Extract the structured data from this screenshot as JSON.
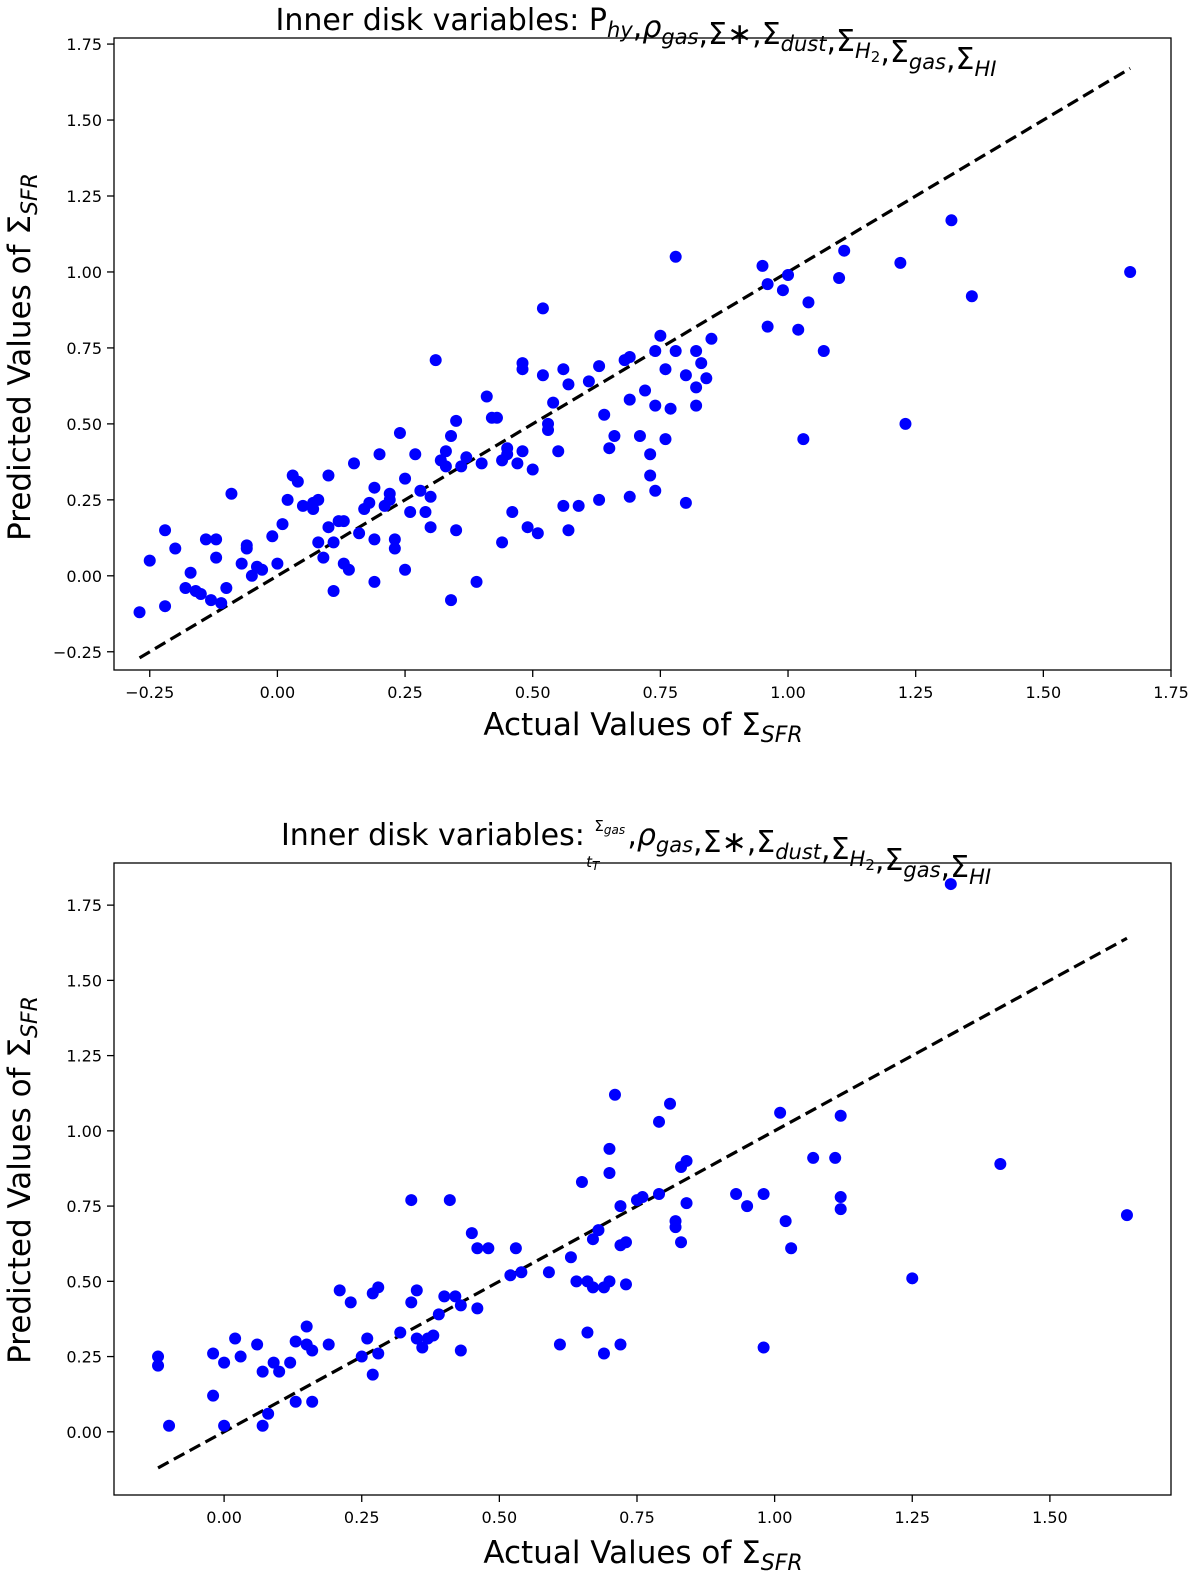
{
  "figure": {
    "charts": [
      {
        "title_main": "Inner disk variables: ",
        "title_terms": [
          {
            "base": "P",
            "sub": "hy"
          },
          {
            "base": "ρ",
            "sub": "gas"
          },
          {
            "base": "Σ∗",
            "sub": ""
          },
          {
            "base": "Σ",
            "sub": "dust"
          },
          {
            "base": "Σ",
            "sub": "H",
            "subsub": "2"
          },
          {
            "base": "Σ",
            "sub": "gas"
          },
          {
            "base": "Σ",
            "sub": "HI"
          }
        ]
      },
      {
        "title_main": "Inner disk variables: ",
        "title_fraction": {
          "num_base": "Σ",
          "num_sub": "gas",
          "den_base": "t",
          "den_sub": "T"
        },
        "title_terms": [
          {
            "base": "ρ",
            "sub": "gas"
          },
          {
            "base": "Σ∗",
            "sub": ""
          },
          {
            "base": "Σ",
            "sub": "dust"
          },
          {
            "base": "Σ",
            "sub": "H",
            "subsub": "2"
          },
          {
            "base": "Σ",
            "sub": "gas"
          },
          {
            "base": "Σ",
            "sub": "HI"
          }
        ]
      }
    ]
  },
  "chart_data": [
    {
      "type": "scatter",
      "title": "Inner disk variables: P_hy, ρ_gas, Σ∗, Σ_dust, Σ_H2, Σ_gas, Σ_HI",
      "xlabel": "Actual Values of Σ_SFR",
      "ylabel": "Predicted Values of Σ_SFR",
      "xlabel_base": "Actual Values of Σ",
      "ylabel_base": "Predicted Values of Σ",
      "label_sub": "SFR",
      "xlim": [
        -0.32,
        1.75
      ],
      "ylim": [
        -0.31,
        1.77
      ],
      "xticks": [
        -0.25,
        0,
        0.25,
        0.5,
        0.75,
        1,
        1.25,
        1.5,
        1.75
      ],
      "xtick_labels": [
        "−0.25",
        "0.00",
        "0.25",
        "0.50",
        "0.75",
        "1.00",
        "1.25",
        "1.50",
        "1.75"
      ],
      "yticks": [
        -0.25,
        0,
        0.25,
        0.5,
        0.75,
        1,
        1.25,
        1.5,
        1.75
      ],
      "ytick_labels": [
        "−0.25",
        "0.00",
        "0.25",
        "0.50",
        "0.75",
        "1.00",
        "1.25",
        "1.50",
        "1.75"
      ],
      "marker_color": "#0000ff",
      "reference_line": {
        "x": [
          -0.27,
          1.67
        ],
        "y": [
          -0.27,
          1.67
        ],
        "style": "dashed",
        "color": "#000000"
      },
      "points": [
        [
          -0.27,
          -0.12
        ],
        [
          -0.25,
          0.05
        ],
        [
          -0.22,
          -0.1
        ],
        [
          -0.22,
          0.15
        ],
        [
          -0.2,
          0.09
        ],
        [
          -0.18,
          -0.04
        ],
        [
          -0.17,
          0.01
        ],
        [
          -0.16,
          -0.05
        ],
        [
          -0.15,
          -0.06
        ],
        [
          -0.14,
          0.12
        ],
        [
          -0.13,
          -0.08
        ],
        [
          -0.12,
          0.12
        ],
        [
          -0.12,
          0.06
        ],
        [
          -0.11,
          -0.09
        ],
        [
          -0.1,
          -0.04
        ],
        [
          -0.09,
          0.27
        ],
        [
          -0.07,
          0.04
        ],
        [
          -0.06,
          0.09
        ],
        [
          -0.06,
          0.1
        ],
        [
          -0.05,
          0.0
        ],
        [
          -0.04,
          0.03
        ],
        [
          -0.03,
          0.02
        ],
        [
          -0.01,
          0.13
        ],
        [
          0.0,
          0.04
        ],
        [
          0.01,
          0.17
        ],
        [
          0.02,
          0.25
        ],
        [
          0.03,
          0.33
        ],
        [
          0.04,
          0.31
        ],
        [
          0.05,
          0.23
        ],
        [
          0.07,
          0.24
        ],
        [
          0.07,
          0.22
        ],
        [
          0.08,
          0.11
        ],
        [
          0.08,
          0.25
        ],
        [
          0.09,
          0.06
        ],
        [
          0.1,
          0.33
        ],
        [
          0.1,
          0.16
        ],
        [
          0.11,
          0.11
        ],
        [
          0.11,
          -0.05
        ],
        [
          0.12,
          0.18
        ],
        [
          0.13,
          0.04
        ],
        [
          0.13,
          0.18
        ],
        [
          0.14,
          0.02
        ],
        [
          0.15,
          0.37
        ],
        [
          0.16,
          0.14
        ],
        [
          0.17,
          0.22
        ],
        [
          0.18,
          0.24
        ],
        [
          0.19,
          0.12
        ],
        [
          0.19,
          -0.02
        ],
        [
          0.19,
          0.29
        ],
        [
          0.2,
          0.4
        ],
        [
          0.21,
          0.23
        ],
        [
          0.22,
          0.27
        ],
        [
          0.22,
          0.25
        ],
        [
          0.23,
          0.12
        ],
        [
          0.23,
          0.09
        ],
        [
          0.24,
          0.47
        ],
        [
          0.25,
          0.32
        ],
        [
          0.25,
          0.02
        ],
        [
          0.26,
          0.21
        ],
        [
          0.27,
          0.4
        ],
        [
          0.28,
          0.28
        ],
        [
          0.29,
          0.21
        ],
        [
          0.3,
          0.16
        ],
        [
          0.3,
          0.26
        ],
        [
          0.31,
          0.71
        ],
        [
          0.32,
          0.38
        ],
        [
          0.33,
          0.36
        ],
        [
          0.33,
          0.41
        ],
        [
          0.34,
          0.46
        ],
        [
          0.34,
          -0.08
        ],
        [
          0.35,
          0.15
        ],
        [
          0.35,
          0.51
        ],
        [
          0.36,
          0.36
        ],
        [
          0.37,
          0.39
        ],
        [
          0.39,
          -0.02
        ],
        [
          0.4,
          0.37
        ],
        [
          0.41,
          0.59
        ],
        [
          0.42,
          0.52
        ],
        [
          0.43,
          0.52
        ],
        [
          0.44,
          0.11
        ],
        [
          0.44,
          0.38
        ],
        [
          0.45,
          0.4
        ],
        [
          0.45,
          0.42
        ],
        [
          0.46,
          0.21
        ],
        [
          0.47,
          0.37
        ],
        [
          0.48,
          0.41
        ],
        [
          0.48,
          0.68
        ],
        [
          0.48,
          0.7
        ],
        [
          0.49,
          0.16
        ],
        [
          0.5,
          0.35
        ],
        [
          0.51,
          0.14
        ],
        [
          0.52,
          0.66
        ],
        [
          0.52,
          0.88
        ],
        [
          0.53,
          0.5
        ],
        [
          0.53,
          0.48
        ],
        [
          0.54,
          0.57
        ],
        [
          0.55,
          0.41
        ],
        [
          0.56,
          0.68
        ],
        [
          0.56,
          0.23
        ],
        [
          0.57,
          0.63
        ],
        [
          0.57,
          0.15
        ],
        [
          0.59,
          0.23
        ],
        [
          0.61,
          0.64
        ],
        [
          0.63,
          0.25
        ],
        [
          0.63,
          0.69
        ],
        [
          0.64,
          0.53
        ],
        [
          0.65,
          0.42
        ],
        [
          0.66,
          0.46
        ],
        [
          0.68,
          0.71
        ],
        [
          0.69,
          0.72
        ],
        [
          0.69,
          0.26
        ],
        [
          0.69,
          0.58
        ],
        [
          0.71,
          0.46
        ],
        [
          0.72,
          0.61
        ],
        [
          0.73,
          0.4
        ],
        [
          0.73,
          0.33
        ],
        [
          0.74,
          0.28
        ],
        [
          0.74,
          0.74
        ],
        [
          0.74,
          0.56
        ],
        [
          0.75,
          0.79
        ],
        [
          0.76,
          0.45
        ],
        [
          0.76,
          0.68
        ],
        [
          0.77,
          0.55
        ],
        [
          0.78,
          1.05
        ],
        [
          0.78,
          0.74
        ],
        [
          0.8,
          0.24
        ],
        [
          0.8,
          0.66
        ],
        [
          0.82,
          0.62
        ],
        [
          0.82,
          0.56
        ],
        [
          0.82,
          0.74
        ],
        [
          0.83,
          0.7
        ],
        [
          0.84,
          0.65
        ],
        [
          0.85,
          0.78
        ],
        [
          0.95,
          1.02
        ],
        [
          0.96,
          0.96
        ],
        [
          0.96,
          0.82
        ],
        [
          0.99,
          0.94
        ],
        [
          1.0,
          0.99
        ],
        [
          1.02,
          0.81
        ],
        [
          1.03,
          0.45
        ],
        [
          1.04,
          0.9
        ],
        [
          1.07,
          0.74
        ],
        [
          1.1,
          0.98
        ],
        [
          1.11,
          1.07
        ],
        [
          1.22,
          1.03
        ],
        [
          1.23,
          0.5
        ],
        [
          1.32,
          1.17
        ],
        [
          1.36,
          0.92
        ],
        [
          1.67,
          1.0
        ]
      ]
    },
    {
      "type": "scatter",
      "title": "Inner disk variables: Σ_gas/t_T, ρ_gas, Σ∗, Σ_dust, Σ_H2, Σ_gas, Σ_HI",
      "xlabel": "Actual Values of Σ_SFR",
      "ylabel": "Predicted Values of Σ_SFR",
      "xlabel_base": "Actual Values of Σ",
      "ylabel_base": "Predicted Values of Σ",
      "label_sub": "SFR",
      "xlim": [
        -0.2,
        1.72
      ],
      "ylim": [
        -0.21,
        1.89
      ],
      "xticks": [
        0,
        0.25,
        0.5,
        0.75,
        1,
        1.25,
        1.5
      ],
      "xtick_labels": [
        "0.00",
        "0.25",
        "0.50",
        "0.75",
        "1.00",
        "1.25",
        "1.50"
      ],
      "yticks": [
        0,
        0.25,
        0.5,
        0.75,
        1,
        1.25,
        1.5,
        1.75
      ],
      "ytick_labels": [
        "0.00",
        "0.25",
        "0.50",
        "0.75",
        "1.00",
        "1.25",
        "1.50",
        "1.75"
      ],
      "marker_color": "#0000ff",
      "reference_line": {
        "x": [
          -0.12,
          1.64
        ],
        "y": [
          -0.12,
          1.64
        ],
        "style": "dashed",
        "color": "#000000"
      },
      "points": [
        [
          -0.12,
          0.25
        ],
        [
          -0.12,
          0.22
        ],
        [
          -0.1,
          0.02
        ],
        [
          -0.02,
          0.26
        ],
        [
          -0.02,
          0.12
        ],
        [
          0.0,
          0.23
        ],
        [
          0.0,
          0.02
        ],
        [
          0.02,
          0.31
        ],
        [
          0.03,
          0.25
        ],
        [
          0.06,
          0.29
        ],
        [
          0.07,
          0.02
        ],
        [
          0.07,
          0.2
        ],
        [
          0.08,
          0.06
        ],
        [
          0.09,
          0.23
        ],
        [
          0.1,
          0.2
        ],
        [
          0.12,
          0.23
        ],
        [
          0.13,
          0.3
        ],
        [
          0.13,
          0.1
        ],
        [
          0.15,
          0.35
        ],
        [
          0.15,
          0.29
        ],
        [
          0.16,
          0.27
        ],
        [
          0.16,
          0.1
        ],
        [
          0.19,
          0.29
        ],
        [
          0.21,
          0.47
        ],
        [
          0.23,
          0.43
        ],
        [
          0.25,
          0.25
        ],
        [
          0.26,
          0.31
        ],
        [
          0.27,
          0.19
        ],
        [
          0.27,
          0.46
        ],
        [
          0.28,
          0.48
        ],
        [
          0.28,
          0.26
        ],
        [
          0.32,
          0.33
        ],
        [
          0.34,
          0.77
        ],
        [
          0.34,
          0.43
        ],
        [
          0.35,
          0.31
        ],
        [
          0.35,
          0.47
        ],
        [
          0.36,
          0.28
        ],
        [
          0.37,
          0.31
        ],
        [
          0.38,
          0.32
        ],
        [
          0.39,
          0.39
        ],
        [
          0.4,
          0.45
        ],
        [
          0.41,
          0.77
        ],
        [
          0.42,
          0.45
        ],
        [
          0.43,
          0.27
        ],
        [
          0.43,
          0.42
        ],
        [
          0.45,
          0.66
        ],
        [
          0.46,
          0.61
        ],
        [
          0.46,
          0.41
        ],
        [
          0.48,
          0.61
        ],
        [
          0.52,
          0.52
        ],
        [
          0.53,
          0.61
        ],
        [
          0.54,
          0.53
        ],
        [
          0.59,
          0.53
        ],
        [
          0.61,
          0.29
        ],
        [
          0.63,
          0.58
        ],
        [
          0.64,
          0.5
        ],
        [
          0.65,
          0.83
        ],
        [
          0.66,
          0.5
        ],
        [
          0.66,
          0.33
        ],
        [
          0.67,
          0.64
        ],
        [
          0.67,
          0.48
        ],
        [
          0.68,
          0.67
        ],
        [
          0.69,
          0.48
        ],
        [
          0.69,
          0.26
        ],
        [
          0.7,
          0.5
        ],
        [
          0.7,
          0.86
        ],
        [
          0.7,
          0.94
        ],
        [
          0.71,
          1.12
        ],
        [
          0.72,
          0.75
        ],
        [
          0.72,
          0.29
        ],
        [
          0.72,
          0.62
        ],
        [
          0.73,
          0.49
        ],
        [
          0.73,
          0.63
        ],
        [
          0.75,
          0.77
        ],
        [
          0.76,
          0.78
        ],
        [
          0.79,
          0.79
        ],
        [
          0.79,
          1.03
        ],
        [
          0.81,
          1.09
        ],
        [
          0.82,
          0.68
        ],
        [
          0.82,
          0.7
        ],
        [
          0.83,
          0.63
        ],
        [
          0.83,
          0.88
        ],
        [
          0.84,
          0.9
        ],
        [
          0.84,
          0.76
        ],
        [
          0.93,
          0.79
        ],
        [
          0.95,
          0.75
        ],
        [
          0.98,
          0.28
        ],
        [
          0.98,
          0.79
        ],
        [
          1.01,
          1.06
        ],
        [
          1.02,
          0.7
        ],
        [
          1.03,
          0.61
        ],
        [
          1.07,
          0.91
        ],
        [
          1.11,
          0.91
        ],
        [
          1.12,
          1.05
        ],
        [
          1.12,
          0.78
        ],
        [
          1.12,
          0.74
        ],
        [
          1.25,
          0.51
        ],
        [
          1.32,
          1.82
        ],
        [
          1.41,
          0.89
        ],
        [
          1.64,
          0.72
        ]
      ]
    }
  ]
}
